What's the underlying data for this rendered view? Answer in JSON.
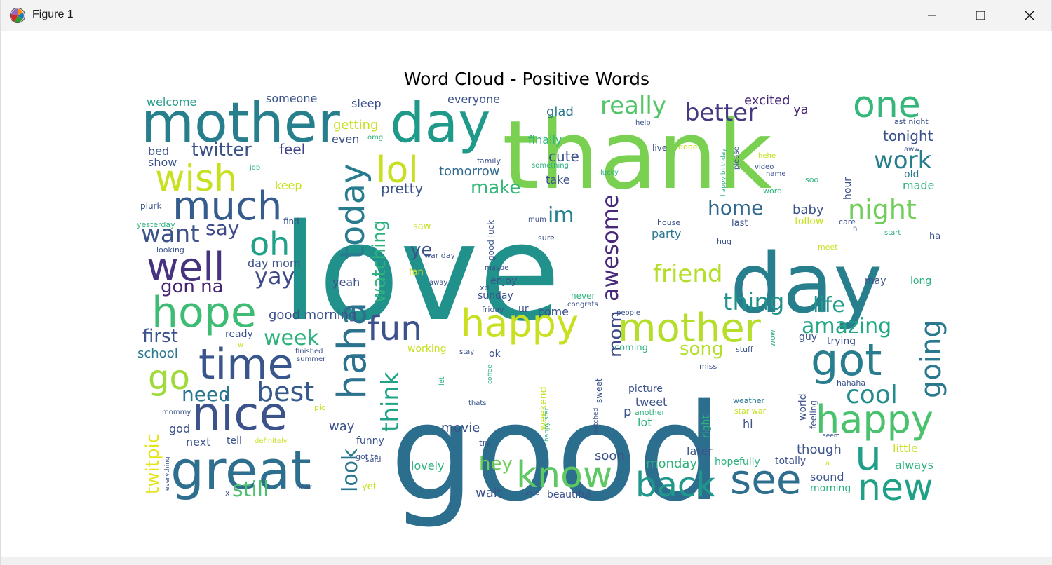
{
  "window": {
    "title": "Figure 1"
  },
  "chart_data": {
    "type": "wordcloud",
    "title": "Word Cloud - Positive Words",
    "colormap": "viridis",
    "background": "#ffffff",
    "words": [
      {
        "text": "love",
        "size": 190,
        "color": "#21918c"
      },
      {
        "text": "good",
        "size": 190,
        "color": "#2c6e8e"
      },
      {
        "text": "thank",
        "size": 135,
        "color": "#7ad151"
      },
      {
        "text": "day",
        "size": 118,
        "color": "#277f8e"
      },
      {
        "text": "mother",
        "size": 78,
        "color": "#277f8e"
      },
      {
        "text": "day",
        "size": 78,
        "color": "#1f9a8a"
      },
      {
        "text": "one",
        "size": 52,
        "color": "#35b779"
      },
      {
        "text": "really",
        "size": 34,
        "color": "#52c569"
      },
      {
        "text": "better",
        "size": 34,
        "color": "#443a83"
      },
      {
        "text": "wish",
        "size": 52,
        "color": "#c8e020"
      },
      {
        "text": "much",
        "size": 56,
        "color": "#365c8d"
      },
      {
        "text": "lol",
        "size": 52,
        "color": "#c8e020"
      },
      {
        "text": "today",
        "size": 48,
        "color": "#287c8e"
      },
      {
        "text": "twitter",
        "size": 26,
        "color": "#3b528b"
      },
      {
        "text": "feel",
        "size": 20,
        "color": "#414487"
      },
      {
        "text": "work",
        "size": 34,
        "color": "#277f8e"
      },
      {
        "text": "well",
        "size": 56,
        "color": "#46327e"
      },
      {
        "text": "hope",
        "size": 60,
        "color": "#3fbc73"
      },
      {
        "text": "oh",
        "size": 46,
        "color": "#1fa088"
      },
      {
        "text": "want",
        "size": 34,
        "color": "#3b528b"
      },
      {
        "text": "say",
        "size": 28,
        "color": "#3e4989"
      },
      {
        "text": "night",
        "size": 38,
        "color": "#6ece58"
      },
      {
        "text": "home",
        "size": 28,
        "color": "#31688e"
      },
      {
        "text": "awesome",
        "size": 32,
        "color": "#482878"
      },
      {
        "text": "im",
        "size": 30,
        "color": "#26828e"
      },
      {
        "text": "friend",
        "size": 34,
        "color": "#b5de2b"
      },
      {
        "text": "yay",
        "size": 32,
        "color": "#3e4989"
      },
      {
        "text": "gon na",
        "size": 26,
        "color": "#482475"
      },
      {
        "text": "happy",
        "size": 54,
        "color": "#c8e020"
      },
      {
        "text": "mother",
        "size": 56,
        "color": "#b5de2b"
      },
      {
        "text": "fun",
        "size": 48,
        "color": "#3b528b"
      },
      {
        "text": "haha",
        "size": 56,
        "color": "#2c728e"
      },
      {
        "text": "thing",
        "size": 34,
        "color": "#21918c"
      },
      {
        "text": "life",
        "size": 30,
        "color": "#1f9a8a"
      },
      {
        "text": "amazing",
        "size": 30,
        "color": "#22a884"
      },
      {
        "text": "going",
        "size": 40,
        "color": "#2a788e"
      },
      {
        "text": "got",
        "size": 62,
        "color": "#287d8e"
      },
      {
        "text": "go",
        "size": 48,
        "color": "#a0da39"
      },
      {
        "text": "time",
        "size": 60,
        "color": "#39568c"
      },
      {
        "text": "first",
        "size": 26,
        "color": "#3b528b"
      },
      {
        "text": "week",
        "size": 30,
        "color": "#2db27d"
      },
      {
        "text": "nice",
        "size": 66,
        "color": "#3b528b"
      },
      {
        "text": "best",
        "size": 38,
        "color": "#375a8c"
      },
      {
        "text": "need",
        "size": 28,
        "color": "#2a788e"
      },
      {
        "text": "think",
        "size": 34,
        "color": "#20a386"
      },
      {
        "text": "cool",
        "size": 36,
        "color": "#228c8d"
      },
      {
        "text": "happy",
        "size": 54,
        "color": "#4ac16d"
      },
      {
        "text": "u",
        "size": 60,
        "color": "#1f9e89"
      },
      {
        "text": "new",
        "size": 52,
        "color": "#1fa187"
      },
      {
        "text": "see",
        "size": 58,
        "color": "#2e6e8e"
      },
      {
        "text": "back",
        "size": 48,
        "color": "#1f978b"
      },
      {
        "text": "know",
        "size": 52,
        "color": "#5ec962"
      },
      {
        "text": "great",
        "size": 76,
        "color": "#2e6e8e"
      },
      {
        "text": "twitpic",
        "size": 26,
        "color": "#e5e419"
      },
      {
        "text": "still",
        "size": 30,
        "color": "#4ac16d"
      },
      {
        "text": "look",
        "size": 30,
        "color": "#2a788e"
      },
      {
        "text": "hey",
        "size": 26,
        "color": "#6ece58"
      },
      {
        "text": "song",
        "size": 26,
        "color": "#b5de2b"
      },
      {
        "text": "mom",
        "size": 26,
        "color": "#3e4a89"
      },
      {
        "text": "make",
        "size": 26,
        "color": "#35b779"
      },
      {
        "text": "pretty",
        "size": 20,
        "color": "#3b528b"
      },
      {
        "text": "tomorrow",
        "size": 18,
        "color": "#31688e"
      },
      {
        "text": "cute",
        "size": 20,
        "color": "#3b528b"
      },
      {
        "text": "glad",
        "size": 18,
        "color": "#2a788e"
      },
      {
        "text": "tonight",
        "size": 20,
        "color": "#3b528b"
      },
      {
        "text": "excited",
        "size": 18,
        "color": "#482677"
      },
      {
        "text": "ya",
        "size": 18,
        "color": "#482677"
      },
      {
        "text": "welcome",
        "size": 16,
        "color": "#1f9a8a"
      },
      {
        "text": "someone",
        "size": 16,
        "color": "#3b528b"
      },
      {
        "text": "sleep",
        "size": 16,
        "color": "#3b528b"
      },
      {
        "text": "everyone",
        "size": 16,
        "color": "#3b528b"
      },
      {
        "text": "getting",
        "size": 18,
        "color": "#c8e020"
      },
      {
        "text": "even",
        "size": 16,
        "color": "#3b528b"
      },
      {
        "text": "bed",
        "size": 16,
        "color": "#3b528b"
      },
      {
        "text": "show",
        "size": 16,
        "color": "#3b528b"
      },
      {
        "text": "keep",
        "size": 16,
        "color": "#c8e020"
      },
      {
        "text": "finally",
        "size": 16,
        "color": "#2db27d"
      },
      {
        "text": "take",
        "size": 16,
        "color": "#3b528b"
      },
      {
        "text": "baby",
        "size": 18,
        "color": "#3b528b"
      },
      {
        "text": "hour",
        "size": 14,
        "color": "#3b528b"
      },
      {
        "text": "old",
        "size": 14,
        "color": "#2a788e"
      },
      {
        "text": "made",
        "size": 16,
        "color": "#2db27d"
      },
      {
        "text": "follow",
        "size": 14,
        "color": "#c8e020"
      },
      {
        "text": "party",
        "size": 16,
        "color": "#2a788e"
      },
      {
        "text": "last",
        "size": 13,
        "color": "#3b528b"
      },
      {
        "text": "watching",
        "size": 26,
        "color": "#2db27d"
      },
      {
        "text": "ye",
        "size": 26,
        "color": "#3b528b"
      },
      {
        "text": "day mom",
        "size": 16,
        "color": "#3b528b"
      },
      {
        "text": "yeah",
        "size": 16,
        "color": "#3b528b"
      },
      {
        "text": "good morning",
        "size": 18,
        "color": "#3b528b"
      },
      {
        "text": "enjoy",
        "size": 14,
        "color": "#3b528b"
      },
      {
        "text": "sunday",
        "size": 14,
        "color": "#3b528b"
      },
      {
        "text": "come",
        "size": 16,
        "color": "#3b528b"
      },
      {
        "text": "school",
        "size": 18,
        "color": "#2a788e"
      },
      {
        "text": "ready",
        "size": 14,
        "color": "#3b528b"
      },
      {
        "text": "working",
        "size": 14,
        "color": "#c8e020"
      },
      {
        "text": "ok",
        "size": 14,
        "color": "#3b528b"
      },
      {
        "text": "guy",
        "size": 14,
        "color": "#3b528b"
      },
      {
        "text": "trying",
        "size": 14,
        "color": "#3b528b"
      },
      {
        "text": "may",
        "size": 14,
        "color": "#3b528b"
      },
      {
        "text": "long",
        "size": 14,
        "color": "#2db27d"
      },
      {
        "text": "way",
        "size": 18,
        "color": "#3b528b"
      },
      {
        "text": "movie",
        "size": 18,
        "color": "#3b528b"
      },
      {
        "text": "funny",
        "size": 14,
        "color": "#3b528b"
      },
      {
        "text": "tell",
        "size": 14,
        "color": "#3b528b"
      },
      {
        "text": "next",
        "size": 16,
        "color": "#3b528b"
      },
      {
        "text": "god",
        "size": 16,
        "color": "#3b528b"
      },
      {
        "text": "soon",
        "size": 18,
        "color": "#3b528b"
      },
      {
        "text": "monday",
        "size": 18,
        "color": "#2db27d"
      },
      {
        "text": "later",
        "size": 16,
        "color": "#3b528b"
      },
      {
        "text": "though",
        "size": 18,
        "color": "#3b528b"
      },
      {
        "text": "little",
        "size": 16,
        "color": "#c8e020"
      },
      {
        "text": "always",
        "size": 16,
        "color": "#2db27d"
      },
      {
        "text": "totally",
        "size": 14,
        "color": "#3b528b"
      },
      {
        "text": "sound",
        "size": 16,
        "color": "#3b528b"
      },
      {
        "text": "morning",
        "size": 14,
        "color": "#2db27d"
      },
      {
        "text": "lovely",
        "size": 16,
        "color": "#2db27d"
      },
      {
        "text": "wait",
        "size": 18,
        "color": "#3b528b"
      },
      {
        "text": "tweet",
        "size": 16,
        "color": "#3b528b"
      },
      {
        "text": "lot",
        "size": 16,
        "color": "#2db27d"
      },
      {
        "text": "hi",
        "size": 16,
        "color": "#3b528b"
      },
      {
        "text": "p",
        "size": 18,
        "color": "#3b528b"
      },
      {
        "text": "picture",
        "size": 14,
        "color": "#3b528b"
      },
      {
        "text": "hopefully",
        "size": 14,
        "color": "#2db27d"
      },
      {
        "text": "beautiful",
        "size": 14,
        "color": "#3b528b"
      },
      {
        "text": "weekend",
        "size": 14,
        "color": "#c8e020"
      },
      {
        "text": "sweet",
        "size": 12,
        "color": "#3b528b"
      },
      {
        "text": "world",
        "size": 14,
        "color": "#3b528b"
      },
      {
        "text": "feeling",
        "size": 12,
        "color": "#3b528b"
      },
      {
        "text": "right",
        "size": 14,
        "color": "#2db27d"
      },
      {
        "text": "plurk",
        "size": 12,
        "color": "#3b528b"
      },
      {
        "text": "yesterday",
        "size": 11,
        "color": "#2db27d"
      },
      {
        "text": "find",
        "size": 12,
        "color": "#3b528b"
      },
      {
        "text": "looking",
        "size": 11,
        "color": "#3b528b"
      },
      {
        "text": "saw",
        "size": 13,
        "color": "#c8e020"
      },
      {
        "text": "fan",
        "size": 13,
        "color": "#c8e020"
      },
      {
        "text": "war day",
        "size": 11,
        "color": "#3b528b"
      },
      {
        "text": "maybe",
        "size": 10,
        "color": "#3b528b"
      },
      {
        "text": "away",
        "size": 10,
        "color": "#3b528b"
      },
      {
        "text": "xd",
        "size": 11,
        "color": "#3b528b"
      },
      {
        "text": "friday",
        "size": 11,
        "color": "#3b528b"
      },
      {
        "text": "ur",
        "size": 14,
        "color": "#3b528b"
      },
      {
        "text": "never",
        "size": 12,
        "color": "#2db27d"
      },
      {
        "text": "congrats",
        "size": 10,
        "color": "#3b528b"
      },
      {
        "text": "people",
        "size": 10,
        "color": "#3b528b"
      },
      {
        "text": "mum",
        "size": 10,
        "color": "#3b528b"
      },
      {
        "text": "sure",
        "size": 11,
        "color": "#3b528b"
      },
      {
        "text": "house",
        "size": 11,
        "color": "#3b528b"
      },
      {
        "text": "care",
        "size": 11,
        "color": "#3b528b"
      },
      {
        "text": "h",
        "size": 10,
        "color": "#3b528b"
      },
      {
        "text": "start",
        "size": 10,
        "color": "#2db27d"
      },
      {
        "text": "ha",
        "size": 13,
        "color": "#3b528b"
      },
      {
        "text": "hug",
        "size": 11,
        "color": "#3b528b"
      },
      {
        "text": "meet",
        "size": 11,
        "color": "#c8e020"
      },
      {
        "text": "good luck",
        "size": 12,
        "color": "#3b528b"
      },
      {
        "text": "family",
        "size": 11,
        "color": "#3b528b"
      },
      {
        "text": "something",
        "size": 10,
        "color": "#2db27d"
      },
      {
        "text": "lucky",
        "size": 10,
        "color": "#2db27d"
      },
      {
        "text": "live",
        "size": 12,
        "color": "#3b528b"
      },
      {
        "text": "done",
        "size": 11,
        "color": "#c8e020"
      },
      {
        "text": "help",
        "size": 10,
        "color": "#3b528b"
      },
      {
        "text": "happy birthday",
        "size": 9,
        "color": "#2db27d"
      },
      {
        "text": "please",
        "size": 10,
        "color": "#3b528b"
      },
      {
        "text": "hehe",
        "size": 10,
        "color": "#c8e020"
      },
      {
        "text": "video",
        "size": 10,
        "color": "#3b528b"
      },
      {
        "text": "name",
        "size": 10,
        "color": "#3b528b"
      },
      {
        "text": "soo",
        "size": 11,
        "color": "#2db27d"
      },
      {
        "text": "word",
        "size": 11,
        "color": "#2db27d"
      },
      {
        "text": "aww",
        "size": 10,
        "color": "#3b528b"
      },
      {
        "text": "last night",
        "size": 11,
        "color": "#3b528b"
      },
      {
        "text": "omg",
        "size": 10,
        "color": "#2db27d"
      },
      {
        "text": "job",
        "size": 10,
        "color": "#2db27d"
      },
      {
        "text": "w",
        "size": 10,
        "color": "#c8e020"
      },
      {
        "text": "finished",
        "size": 10,
        "color": "#3b528b"
      },
      {
        "text": "summer",
        "size": 10,
        "color": "#3b528b"
      },
      {
        "text": "stay",
        "size": 10,
        "color": "#3b528b"
      },
      {
        "text": "coming",
        "size": 13,
        "color": "#2db27d"
      },
      {
        "text": "stuff",
        "size": 11,
        "color": "#3b528b"
      },
      {
        "text": "wow",
        "size": 11,
        "color": "#2db27d"
      },
      {
        "text": "miss",
        "size": 11,
        "color": "#3b528b"
      },
      {
        "text": "hahaha",
        "size": 11,
        "color": "#3b528b"
      },
      {
        "text": "weather",
        "size": 11,
        "color": "#2a788e"
      },
      {
        "text": "star war",
        "size": 11,
        "color": "#c8e020"
      },
      {
        "text": "seem",
        "size": 9,
        "color": "#3b528b"
      },
      {
        "text": "a",
        "size": 10,
        "color": "#c8e020"
      },
      {
        "text": "let",
        "size": 10,
        "color": "#2db27d"
      },
      {
        "text": "coffee",
        "size": 9,
        "color": "#2db27d"
      },
      {
        "text": "thats",
        "size": 10,
        "color": "#3b528b"
      },
      {
        "text": "happy star",
        "size": 9,
        "color": "#2db27d"
      },
      {
        "text": "watched",
        "size": 9,
        "color": "#3b528b"
      },
      {
        "text": "another",
        "size": 11,
        "color": "#2db27d"
      },
      {
        "text": "pic",
        "size": 11,
        "color": "#c8e020"
      },
      {
        "text": "mommy",
        "size": 10,
        "color": "#3b528b"
      },
      {
        "text": "everything",
        "size": 9,
        "color": "#3b528b"
      },
      {
        "text": "definitely",
        "size": 10,
        "color": "#c8e020"
      },
      {
        "text": "got ta",
        "size": 11,
        "color": "#3b528b"
      },
      {
        "text": "said",
        "size": 11,
        "color": "#3b528b"
      },
      {
        "text": "yet",
        "size": 13,
        "color": "#c8e020"
      },
      {
        "text": "hear",
        "size": 10,
        "color": "#3b528b"
      },
      {
        "text": "x",
        "size": 11,
        "color": "#3b528b"
      },
      {
        "text": "true",
        "size": 11,
        "color": "#3b528b"
      },
      {
        "text": "try",
        "size": 12,
        "color": "#3b528b"
      }
    ]
  }
}
